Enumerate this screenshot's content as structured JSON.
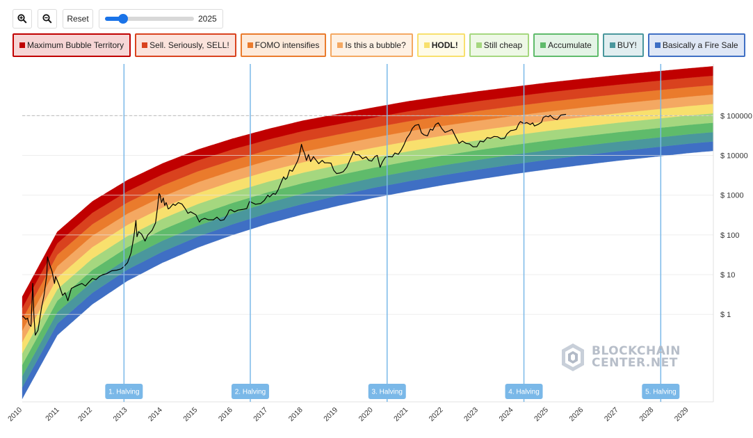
{
  "toolbar": {
    "zoom_in_icon": "zoom-in-icon",
    "zoom_out_icon": "zoom-out-icon",
    "reset_label": "Reset",
    "slider_value": "2025",
    "slider_fraction": 0.15
  },
  "legend": [
    {
      "label": "Maximum Bubble Territory",
      "color": "#c00000",
      "bg": "#f6d5d5",
      "bold": false
    },
    {
      "label": "Sell. Seriously, SELL!",
      "color": "#d9421e",
      "bg": "#fbe3dc",
      "bold": false
    },
    {
      "label": "FOMO intensifies",
      "color": "#ea7b2c",
      "bg": "#fdeada",
      "bold": false
    },
    {
      "label": "Is this a bubble?",
      "color": "#f4a862",
      "bg": "#fef1e4",
      "bold": false
    },
    {
      "label": "HODL!",
      "color": "#f8e06d",
      "bg": "#fefbe8",
      "bold": true
    },
    {
      "label": "Still cheap",
      "color": "#a5d77f",
      "bg": "#eef8e6",
      "bold": false
    },
    {
      "label": "Accumulate",
      "color": "#5fbb6b",
      "bg": "#e4f4e6",
      "bold": false
    },
    {
      "label": "BUY!",
      "color": "#4a979d",
      "bg": "#e1eef0",
      "bold": false
    },
    {
      "label": "Basically a Fire Sale",
      "color": "#3f6fc4",
      "bg": "#dfe7f6",
      "bold": false
    }
  ],
  "watermark": {
    "line1": "BLOCKCHAIN",
    "line2": "CENTER.NET"
  },
  "chart_data": {
    "type": "area",
    "x_ticks": [
      "2010",
      "2011",
      "2012",
      "2013",
      "2014",
      "2015",
      "2016",
      "2017",
      "2018",
      "2019",
      "2020",
      "2021",
      "2022",
      "2023",
      "2024",
      "2025",
      "2026",
      "2027",
      "2028",
      "2029"
    ],
    "xlim": [
      2010.0,
      2029.7
    ],
    "y_scale": "log",
    "y_ticks": [
      1,
      10,
      100,
      1000,
      10000,
      100000
    ],
    "y_tick_labels": [
      "$ 1",
      "$ 10",
      "$ 100",
      "$ 1000",
      "$ 10000",
      "$ 100000"
    ],
    "ylim": [
      0.0063,
      2000000
    ],
    "halvings": [
      {
        "label": "1. Halving",
        "year": 2012.9
      },
      {
        "label": "2. Halving",
        "year": 2016.5
      },
      {
        "label": "3. Halving",
        "year": 2020.4
      },
      {
        "label": "4. Halving",
        "year": 2024.3
      },
      {
        "label": "5. Halving",
        "year": 2028.2
      }
    ],
    "price_reference_line": 100000,
    "bands_colors": [
      "#3f6fc4",
      "#4a979d",
      "#5fbb6b",
      "#a5d77f",
      "#f8e06d",
      "#f4a862",
      "#ea7b2c",
      "#d9421e",
      "#c00000"
    ],
    "band_curve": {
      "years": [
        2010.0,
        2011.0,
        2012.0,
        2013.0,
        2014.0,
        2015.0,
        2016.0,
        2017.0,
        2018.0,
        2019.0,
        2020.0,
        2021.0,
        2022.0,
        2023.0,
        2024.0,
        2025.0,
        2026.0,
        2027.0,
        2028.0,
        2029.0,
        2029.7
      ],
      "lower": [
        0.0075,
        0.3,
        1.8,
        7,
        20,
        48,
        100,
        190,
        330,
        540,
        850,
        1250,
        1800,
        2500,
        3400,
        4500,
        5800,
        7400,
        9200,
        11500,
        13000
      ],
      "upper": [
        2.8,
        120,
        700,
        2400,
        6300,
        14000,
        26500,
        46000,
        75000,
        110000,
        160000,
        230000,
        310000,
        410000,
        530000,
        680000,
        850000,
        1050000,
        1280000,
        1550000,
        1750000
      ]
    },
    "price": [
      [
        2010.0,
        0.9
      ],
      [
        2010.05,
        0.85
      ],
      [
        2010.1,
        0.75
      ],
      [
        2010.15,
        0.8
      ],
      [
        2010.2,
        0.55
      ],
      [
        2010.25,
        0.5
      ],
      [
        2010.3,
        6.0
      ],
      [
        2010.33,
        1.0
      ],
      [
        2010.37,
        0.3
      ],
      [
        2010.45,
        0.4
      ],
      [
        2010.55,
        1.5
      ],
      [
        2010.62,
        3.0
      ],
      [
        2010.7,
        10.0
      ],
      [
        2010.72,
        28.0
      ],
      [
        2010.78,
        18.0
      ],
      [
        2010.85,
        12.0
      ],
      [
        2010.92,
        6.0
      ],
      [
        2010.95,
        9.0
      ],
      [
        2011.05,
        5.5
      ],
      [
        2011.15,
        3.0
      ],
      [
        2011.22,
        3.5
      ],
      [
        2011.3,
        2.2
      ],
      [
        2011.4,
        4.5
      ],
      [
        2011.5,
        5.0
      ],
      [
        2011.6,
        5.5
      ],
      [
        2011.7,
        6.0
      ],
      [
        2011.8,
        5.2
      ],
      [
        2011.9,
        6.5
      ],
      [
        2012.0,
        8.0
      ],
      [
        2012.1,
        7.5
      ],
      [
        2012.2,
        9.0
      ],
      [
        2012.3,
        10.0
      ],
      [
        2012.4,
        10.5
      ],
      [
        2012.55,
        12.5
      ],
      [
        2012.7,
        13.0
      ],
      [
        2012.82,
        14.0
      ],
      [
        2012.9,
        16.0
      ],
      [
        2013.0,
        20.0
      ],
      [
        2013.1,
        35.0
      ],
      [
        2013.18,
        90.0
      ],
      [
        2013.24,
        230.0
      ],
      [
        2013.27,
        90.0
      ],
      [
        2013.32,
        120.0
      ],
      [
        2013.4,
        105.0
      ],
      [
        2013.5,
        70.0
      ],
      [
        2013.58,
        100.0
      ],
      [
        2013.7,
        130.0
      ],
      [
        2013.8,
        200.0
      ],
      [
        2013.85,
        450.0
      ],
      [
        2013.9,
        1100.0
      ],
      [
        2013.93,
        1000.0
      ],
      [
        2013.97,
        650.0
      ],
      [
        2014.02,
        850.0
      ],
      [
        2014.06,
        550.0
      ],
      [
        2014.1,
        650.0
      ],
      [
        2014.13,
        550.0
      ],
      [
        2014.16,
        450.0
      ],
      [
        2014.2,
        470.0
      ],
      [
        2014.3,
        600.0
      ],
      [
        2014.36,
        550.0
      ],
      [
        2014.45,
        650.0
      ],
      [
        2014.55,
        600.0
      ],
      [
        2014.65,
        450.0
      ],
      [
        2014.72,
        350.0
      ],
      [
        2014.8,
        380.0
      ],
      [
        2014.9,
        340.0
      ],
      [
        2014.95,
        320.0
      ],
      [
        2015.05,
        210.0
      ],
      [
        2015.1,
        240.0
      ],
      [
        2015.2,
        260.0
      ],
      [
        2015.3,
        240.0
      ],
      [
        2015.45,
        240.0
      ],
      [
        2015.55,
        280.0
      ],
      [
        2015.65,
        230.0
      ],
      [
        2015.75,
        240.0
      ],
      [
        2015.85,
        330.0
      ],
      [
        2015.9,
        420.0
      ],
      [
        2015.95,
        430.0
      ],
      [
        2016.05,
        380.0
      ],
      [
        2016.15,
        420.0
      ],
      [
        2016.3,
        440.0
      ],
      [
        2016.4,
        460.0
      ],
      [
        2016.48,
        700.0
      ],
      [
        2016.55,
        650.0
      ],
      [
        2016.65,
        590.0
      ],
      [
        2016.8,
        620.0
      ],
      [
        2016.9,
        740.0
      ],
      [
        2017.0,
        1000.0
      ],
      [
        2017.05,
        900.0
      ],
      [
        2017.15,
        1100.0
      ],
      [
        2017.22,
        1050.0
      ],
      [
        2017.3,
        1400.0
      ],
      [
        2017.4,
        2300.0
      ],
      [
        2017.45,
        2900.0
      ],
      [
        2017.5,
        2500.0
      ],
      [
        2017.55,
        2700.0
      ],
      [
        2017.62,
        4300.0
      ],
      [
        2017.7,
        4000.0
      ],
      [
        2017.78,
        5500.0
      ],
      [
        2017.85,
        7300.0
      ],
      [
        2017.9,
        10000.0
      ],
      [
        2017.96,
        19000.0
      ],
      [
        2018.0,
        14000.0
      ],
      [
        2018.05,
        11000.0
      ],
      [
        2018.1,
        7500.0
      ],
      [
        2018.16,
        10500.0
      ],
      [
        2018.22,
        7000.0
      ],
      [
        2018.3,
        9300.0
      ],
      [
        2018.38,
        7500.0
      ],
      [
        2018.45,
        6200.0
      ],
      [
        2018.55,
        7500.0
      ],
      [
        2018.62,
        6500.0
      ],
      [
        2018.7,
        6500.0
      ],
      [
        2018.8,
        6400.0
      ],
      [
        2018.88,
        4200.0
      ],
      [
        2018.96,
        3500.0
      ],
      [
        2019.05,
        3600.0
      ],
      [
        2019.15,
        3900.0
      ],
      [
        2019.25,
        5000.0
      ],
      [
        2019.35,
        8000.0
      ],
      [
        2019.45,
        12500.0
      ],
      [
        2019.5,
        10500.0
      ],
      [
        2019.6,
        10300.0
      ],
      [
        2019.7,
        8300.0
      ],
      [
        2019.8,
        9200.0
      ],
      [
        2019.88,
        7500.0
      ],
      [
        2019.96,
        7200.0
      ],
      [
        2020.05,
        9300.0
      ],
      [
        2020.12,
        10000.0
      ],
      [
        2020.2,
        5000.0
      ],
      [
        2020.27,
        7000.0
      ],
      [
        2020.35,
        9000.0
      ],
      [
        2020.45,
        9300.0
      ],
      [
        2020.55,
        9200.0
      ],
      [
        2020.62,
        11500.0
      ],
      [
        2020.72,
        10700.0
      ],
      [
        2020.8,
        13500.0
      ],
      [
        2020.88,
        18500.0
      ],
      [
        2020.96,
        27000.0
      ],
      [
        2021.05,
        35000.0
      ],
      [
        2021.12,
        48000.0
      ],
      [
        2021.2,
        57000.0
      ],
      [
        2021.3,
        60000.0
      ],
      [
        2021.38,
        37000.0
      ],
      [
        2021.45,
        33000.0
      ],
      [
        2021.55,
        31000.0
      ],
      [
        2021.63,
        46000.0
      ],
      [
        2021.7,
        43000.0
      ],
      [
        2021.78,
        60000.0
      ],
      [
        2021.86,
        66000.0
      ],
      [
        2021.96,
        47000.0
      ],
      [
        2022.05,
        38000.0
      ],
      [
        2022.15,
        41000.0
      ],
      [
        2022.25,
        45000.0
      ],
      [
        2022.35,
        30000.0
      ],
      [
        2022.45,
        20000.0
      ],
      [
        2022.55,
        23000.0
      ],
      [
        2022.65,
        20000.0
      ],
      [
        2022.75,
        19500.0
      ],
      [
        2022.85,
        16500.0
      ],
      [
        2022.96,
        16600.0
      ],
      [
        2023.05,
        23000.0
      ],
      [
        2023.15,
        22000.0
      ],
      [
        2023.25,
        28000.0
      ],
      [
        2023.35,
        27000.0
      ],
      [
        2023.45,
        30000.0
      ],
      [
        2023.55,
        29500.0
      ],
      [
        2023.65,
        26000.0
      ],
      [
        2023.75,
        27000.0
      ],
      [
        2023.82,
        35000.0
      ],
      [
        2023.92,
        42000.0
      ],
      [
        2024.0,
        43000.0
      ],
      [
        2024.08,
        45000.0
      ],
      [
        2024.15,
        62000.0
      ],
      [
        2024.2,
        71000.0
      ],
      [
        2024.3,
        63000.0
      ],
      [
        2024.38,
        67000.0
      ],
      [
        2024.48,
        60000.0
      ],
      [
        2024.55,
        66000.0
      ],
      [
        2024.6,
        55000.0
      ],
      [
        2024.7,
        60000.0
      ],
      [
        2024.8,
        68000.0
      ],
      [
        2024.85,
        90000.0
      ],
      [
        2024.93,
        98000.0
      ],
      [
        2025.0,
        94000.0
      ],
      [
        2025.05,
        102000.0
      ],
      [
        2025.15,
        84000.0
      ],
      [
        2025.25,
        80000.0
      ],
      [
        2025.35,
        103000.0
      ],
      [
        2025.45,
        107000.0
      ],
      [
        2025.5,
        108000.0
      ]
    ]
  }
}
